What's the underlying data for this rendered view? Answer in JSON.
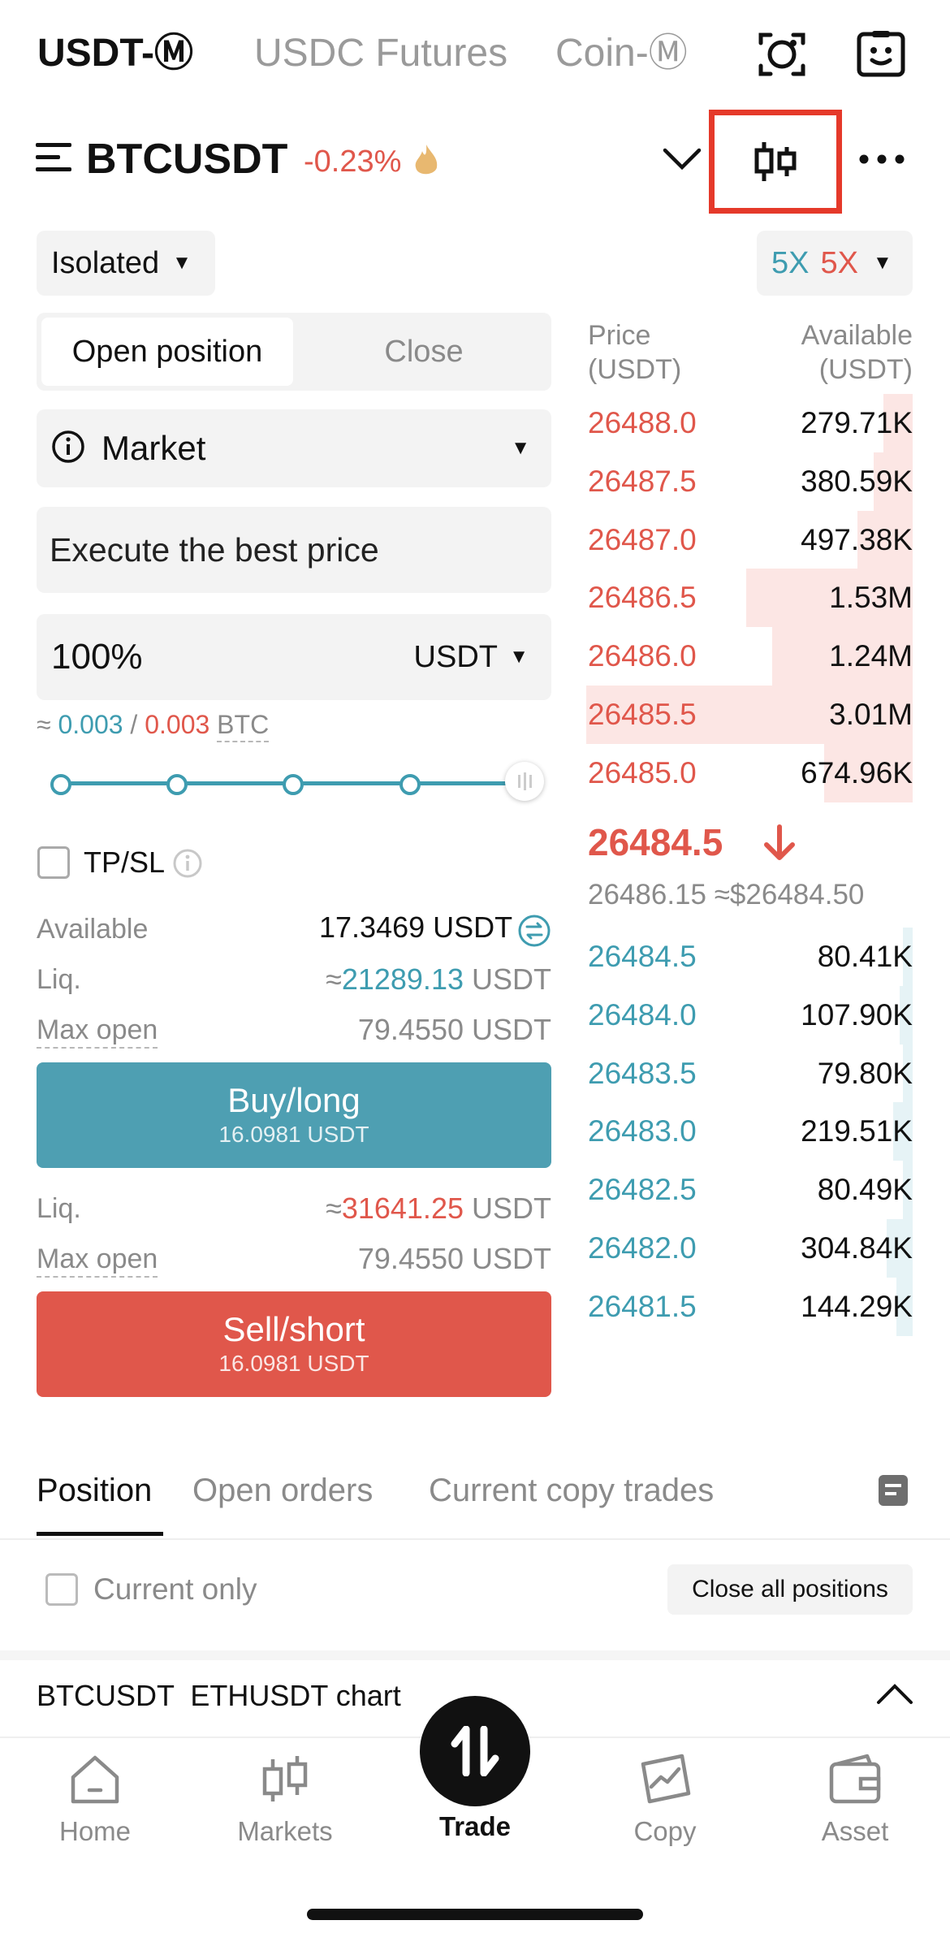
{
  "top_tabs": [
    {
      "label": "USDT-Ⓜ",
      "active": true
    },
    {
      "label": "USDC Futures",
      "active": false
    },
    {
      "label": "Coin-Ⓜ",
      "active": false
    }
  ],
  "header": {
    "symbol": "BTCUSDT",
    "change": "-0.23%"
  },
  "margin_mode": "Isolated",
  "leverage": {
    "long": "5X",
    "short": "5X"
  },
  "position_tabs": {
    "open": "Open position",
    "close": "Close"
  },
  "order_type": "Market",
  "price_field": "Execute the best price",
  "amount": {
    "value": "100%",
    "unit": "USDT"
  },
  "estimate": {
    "approx": "≈",
    "long": "0.003",
    "sep": "/",
    "short": "0.003",
    "unit": "BTC"
  },
  "slider": {
    "percent": 100
  },
  "tpsl_label": "TP/SL",
  "info_long": {
    "available_label": "Available",
    "available_value": "17.3469 USDT",
    "liq_label": "Liq.",
    "liq_prefix": "≈",
    "liq_value": "21289.13",
    "liq_unit": "USDT",
    "max_open_label": "Max open",
    "max_open_value": "79.4550 USDT"
  },
  "buy_button": {
    "label": "Buy/long",
    "sub": "16.0981 USDT"
  },
  "info_short": {
    "liq_label": "Liq.",
    "liq_prefix": "≈",
    "liq_value": "31641.25",
    "liq_unit": "USDT",
    "max_open_label": "Max open",
    "max_open_value": "79.4550 USDT"
  },
  "sell_button": {
    "label": "Sell/short",
    "sub": "16.0981 USDT"
  },
  "orderbook": {
    "price_header": "Price\n(USDT)",
    "amount_header": "Available\n(USDT)",
    "asks": [
      {
        "price": "26488.0",
        "amount": "279.71K",
        "depth": 0.09
      },
      {
        "price": "26487.5",
        "amount": "380.59K",
        "depth": 0.12
      },
      {
        "price": "26487.0",
        "amount": "497.38K",
        "depth": 0.17
      },
      {
        "price": "26486.5",
        "amount": "1.53M",
        "depth": 0.51
      },
      {
        "price": "26486.0",
        "amount": "1.24M",
        "depth": 0.43
      },
      {
        "price": "26485.5",
        "amount": "3.01M",
        "depth": 1.0
      },
      {
        "price": "26485.0",
        "amount": "674.96K",
        "depth": 0.27
      }
    ],
    "last_price": "26484.5",
    "mark_price": "26486.15",
    "index_price": "≈$26484.50",
    "bids": [
      {
        "price": "26484.5",
        "amount": "80.41K",
        "depth": 0.03
      },
      {
        "price": "26484.0",
        "amount": "107.90K",
        "depth": 0.04
      },
      {
        "price": "26483.5",
        "amount": "79.80K",
        "depth": 0.03
      },
      {
        "price": "26483.0",
        "amount": "219.51K",
        "depth": 0.06
      },
      {
        "price": "26482.5",
        "amount": "80.49K",
        "depth": 0.03
      },
      {
        "price": "26482.0",
        "amount": "304.84K",
        "depth": 0.08
      },
      {
        "price": "26481.5",
        "amount": "144.29K",
        "depth": 0.05
      }
    ]
  },
  "bottom_tabs": [
    "Position",
    "Open orders",
    "Current copy trades"
  ],
  "current_only": "Current only",
  "close_all": "Close all positions",
  "chart_bar": "BTCUSDT  ETHUSDT chart",
  "nav": [
    {
      "label": "Home",
      "icon": "home-icon"
    },
    {
      "label": "Markets",
      "icon": "markets-icon"
    },
    {
      "label": "Trade",
      "icon": "trade-icon"
    },
    {
      "label": "Copy",
      "icon": "copy-icon"
    },
    {
      "label": "Asset",
      "icon": "wallet-icon"
    }
  ],
  "colors": {
    "red": "#E0574B",
    "teal": "#3E9CB0",
    "highlight": "#E5392A"
  }
}
